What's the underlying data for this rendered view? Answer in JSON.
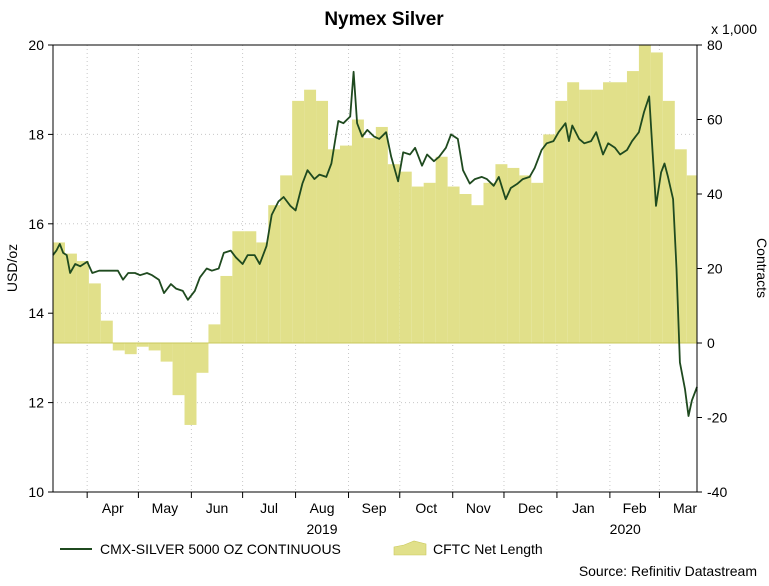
{
  "title": "Nymex Silver",
  "source": "Source: Refinitiv Datastream",
  "colors": {
    "line": "#1f4a1f",
    "area_fill": "#e1e08a",
    "area_stroke": "#c9c85c",
    "grid": "#c8c8c8",
    "axis": "#000000"
  },
  "chart_data": {
    "type": "line",
    "title": "Nymex Silver",
    "xlabel": "",
    "x_tick_labels": [
      "Apr",
      "May",
      "Jun",
      "Jul",
      "Aug",
      "Sep",
      "Oct",
      "Nov",
      "Dec",
      "Jan",
      "Feb",
      "Mar"
    ],
    "x_year_labels": [
      "2019",
      "2020"
    ],
    "x_range": [
      "2019-03-12",
      "2020-03-23"
    ],
    "y_left": {
      "label": "USD/oz",
      "ylim": [
        10,
        20
      ],
      "ticks": [
        10,
        12,
        14,
        16,
        18,
        20
      ]
    },
    "y_right": {
      "label": "Contracts",
      "unit_label": "x 1,000",
      "ylim": [
        -40,
        80
      ],
      "ticks": [
        -40,
        -20,
        0,
        20,
        40,
        60,
        80
      ]
    },
    "grid": true,
    "legend": "bottom",
    "series": [
      {
        "name": "CMX-SILVER 5000 OZ CONTINUOUS",
        "type": "line",
        "axis": "left",
        "x": [
          "2019-03-12",
          "2019-03-14",
          "2019-03-16",
          "2019-03-18",
          "2019-03-20",
          "2019-03-22",
          "2019-03-25",
          "2019-03-28",
          "2019-03-30",
          "2019-04-01",
          "2019-04-04",
          "2019-04-08",
          "2019-04-12",
          "2019-04-16",
          "2019-04-19",
          "2019-04-22",
          "2019-04-25",
          "2019-04-29",
          "2019-05-02",
          "2019-05-06",
          "2019-05-09",
          "2019-05-13",
          "2019-05-16",
          "2019-05-20",
          "2019-05-23",
          "2019-05-27",
          "2019-05-30",
          "2019-06-03",
          "2019-06-06",
          "2019-06-10",
          "2019-06-13",
          "2019-06-17",
          "2019-06-20",
          "2019-06-24",
          "2019-06-27",
          "2019-07-01",
          "2019-07-04",
          "2019-07-08",
          "2019-07-11",
          "2019-07-15",
          "2019-07-18",
          "2019-07-22",
          "2019-07-25",
          "2019-07-29",
          "2019-08-01",
          "2019-08-05",
          "2019-08-08",
          "2019-08-12",
          "2019-08-15",
          "2019-08-19",
          "2019-08-22",
          "2019-08-26",
          "2019-08-29",
          "2019-09-02",
          "2019-09-04",
          "2019-09-06",
          "2019-09-09",
          "2019-09-12",
          "2019-09-16",
          "2019-09-19",
          "2019-09-23",
          "2019-09-26",
          "2019-09-30",
          "2019-10-03",
          "2019-10-07",
          "2019-10-10",
          "2019-10-14",
          "2019-10-17",
          "2019-10-21",
          "2019-10-24",
          "2019-10-28",
          "2019-10-31",
          "2019-11-04",
          "2019-11-07",
          "2019-11-11",
          "2019-11-14",
          "2019-11-18",
          "2019-11-21",
          "2019-11-25",
          "2019-11-28",
          "2019-12-02",
          "2019-12-05",
          "2019-12-09",
          "2019-12-12",
          "2019-12-16",
          "2019-12-19",
          "2019-12-23",
          "2019-12-26",
          "2019-12-30",
          "2020-01-02",
          "2020-01-06",
          "2020-01-08",
          "2020-01-10",
          "2020-01-14",
          "2020-01-17",
          "2020-01-21",
          "2020-01-24",
          "2020-01-28",
          "2020-01-31",
          "2020-02-04",
          "2020-02-07",
          "2020-02-11",
          "2020-02-14",
          "2020-02-18",
          "2020-02-21",
          "2020-02-24",
          "2020-02-26",
          "2020-02-28",
          "2020-03-02",
          "2020-03-04",
          "2020-03-06",
          "2020-03-09",
          "2020-03-11",
          "2020-03-13",
          "2020-03-16",
          "2020-03-18",
          "2020-03-20",
          "2020-03-23"
        ],
        "values": [
          15.3,
          15.4,
          15.55,
          15.35,
          15.3,
          14.9,
          15.1,
          15.05,
          15.1,
          15.15,
          14.9,
          14.95,
          14.95,
          14.95,
          14.95,
          14.75,
          14.9,
          14.9,
          14.85,
          14.9,
          14.85,
          14.75,
          14.45,
          14.65,
          14.55,
          14.5,
          14.3,
          14.5,
          14.8,
          15.0,
          14.95,
          15.0,
          15.35,
          15.4,
          15.25,
          15.1,
          15.3,
          15.3,
          15.1,
          15.5,
          16.2,
          16.5,
          16.6,
          16.4,
          16.3,
          16.9,
          17.2,
          17.0,
          17.1,
          17.05,
          17.35,
          18.3,
          18.25,
          18.4,
          19.4,
          18.25,
          17.95,
          18.1,
          17.95,
          17.9,
          18.05,
          17.5,
          16.95,
          17.6,
          17.55,
          17.7,
          17.3,
          17.55,
          17.4,
          17.5,
          17.7,
          18.0,
          17.9,
          17.2,
          16.9,
          17.0,
          17.05,
          17.0,
          16.85,
          17.05,
          16.55,
          16.8,
          16.9,
          17.0,
          17.05,
          17.25,
          17.65,
          17.8,
          17.85,
          18.05,
          18.25,
          17.85,
          18.2,
          17.9,
          17.8,
          17.85,
          18.05,
          17.55,
          17.8,
          17.7,
          17.55,
          17.65,
          17.85,
          18.05,
          18.5,
          18.85,
          17.6,
          16.4,
          17.15,
          17.35,
          17.05,
          16.55,
          15.0,
          12.9,
          12.3,
          11.7,
          12.05,
          12.35
        ]
      },
      {
        "name": "CFTC Net Length",
        "type": "area",
        "axis": "right",
        "x": [
          "2019-03-12",
          "2019-03-19",
          "2019-03-26",
          "2019-04-02",
          "2019-04-09",
          "2019-04-16",
          "2019-04-23",
          "2019-04-30",
          "2019-05-07",
          "2019-05-14",
          "2019-05-21",
          "2019-05-28",
          "2019-06-04",
          "2019-06-11",
          "2019-06-18",
          "2019-06-25",
          "2019-07-02",
          "2019-07-09",
          "2019-07-16",
          "2019-07-23",
          "2019-07-30",
          "2019-08-06",
          "2019-08-13",
          "2019-08-20",
          "2019-08-27",
          "2019-09-03",
          "2019-09-10",
          "2019-09-17",
          "2019-09-24",
          "2019-10-01",
          "2019-10-08",
          "2019-10-15",
          "2019-10-22",
          "2019-10-29",
          "2019-11-05",
          "2019-11-12",
          "2019-11-19",
          "2019-11-26",
          "2019-12-03",
          "2019-12-10",
          "2019-12-17",
          "2019-12-24",
          "2019-12-31",
          "2020-01-07",
          "2020-01-14",
          "2020-01-21",
          "2020-01-28",
          "2020-02-04",
          "2020-02-11",
          "2020-02-18",
          "2020-02-25",
          "2020-03-03",
          "2020-03-10",
          "2020-03-17"
        ],
        "values": [
          27,
          24,
          22,
          16,
          6,
          -2,
          -3,
          -1,
          -2,
          -5,
          -14,
          -22,
          -8,
          5,
          18,
          30,
          30,
          27,
          37,
          45,
          65,
          68,
          65,
          52,
          53,
          60,
          55,
          58,
          48,
          46,
          42,
          43,
          50,
          42,
          40,
          37,
          43,
          48,
          47,
          45,
          43,
          56,
          65,
          70,
          68,
          68,
          70,
          70,
          73,
          80,
          78,
          65,
          52,
          45
        ]
      }
    ]
  }
}
